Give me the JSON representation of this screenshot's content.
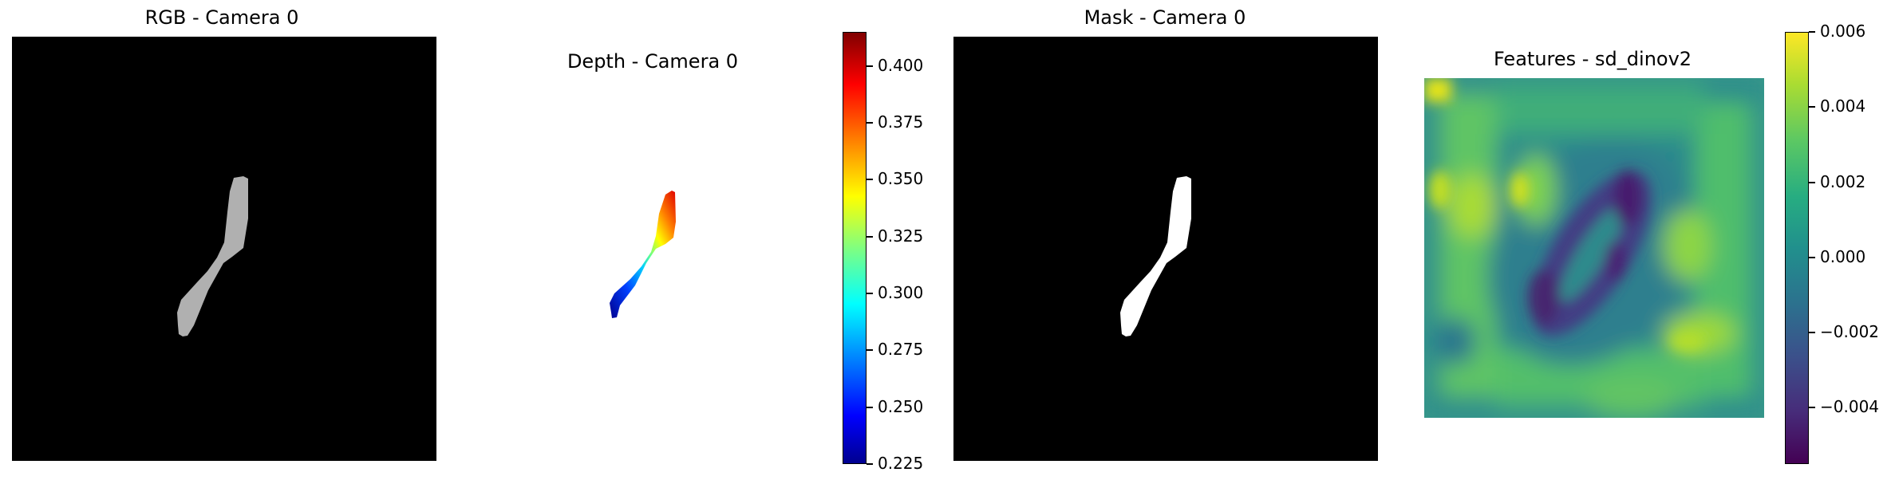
{
  "panels": {
    "rgb": {
      "title": "RGB - Camera 0"
    },
    "depth": {
      "title": "Depth - Camera 0"
    },
    "mask": {
      "title": "Mask - Camera 0"
    },
    "features": {
      "title": "Features - sd_dinov2"
    }
  },
  "depth_colorbar": {
    "colormap": "jet",
    "range": [
      0.225,
      0.415
    ],
    "ticks": [
      "0.400",
      "0.375",
      "0.350",
      "0.325",
      "0.300",
      "0.275",
      "0.250",
      "0.225"
    ]
  },
  "features_colorbar": {
    "colormap": "viridis",
    "range": [
      -0.0055,
      0.006
    ],
    "ticks": [
      "0.006",
      "0.004",
      "0.002",
      "0.000",
      "−0.002",
      "−0.004"
    ]
  },
  "colors": {
    "rgb_background": "#000000",
    "rgb_object": "#b0b0b0",
    "mask_background": "#000000",
    "mask_object": "#ffffff"
  }
}
